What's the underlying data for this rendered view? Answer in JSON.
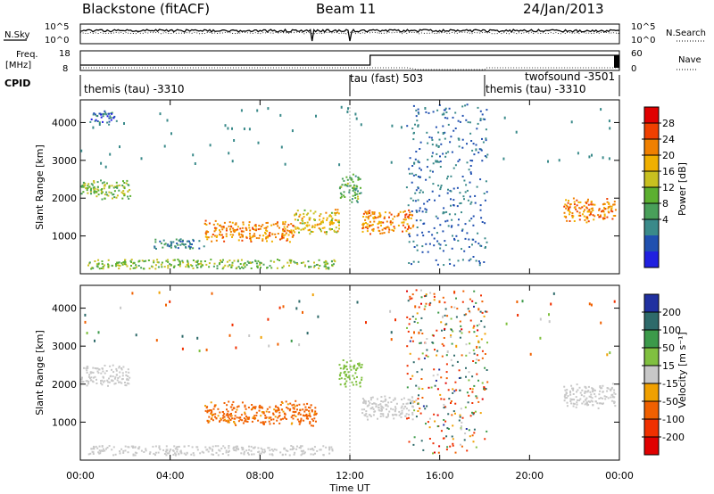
{
  "header": {
    "station": "Blackstone (fitACF)",
    "beam": "Beam 11",
    "date": "24/Jan/2013"
  },
  "panel_labels": {
    "nsky": "N.Sky",
    "nsearch": "N.Search",
    "freq": "Freq.",
    "freq_unit": "[MHz]",
    "nave": "Nave",
    "cpid": "CPID"
  },
  "noise_axis": {
    "left_top": "10^5",
    "left_bottom": "10^0",
    "right_top": "10^5",
    "right_bottom": "10^0"
  },
  "freq_axis": {
    "left_top": "18",
    "left_bottom": "8",
    "right_top": "60",
    "right_bottom": "0"
  },
  "cpid_segments": [
    {
      "label": "themis (tau) -3310",
      "start": 0,
      "end": 12
    },
    {
      "label": "tau (fast) 503",
      "start": 12,
      "end": 18
    },
    {
      "label": "twofsound -3501",
      "start": 18,
      "end": 24
    },
    {
      "label": "themis (tau) -3310",
      "start": 18,
      "end": 24
    }
  ],
  "x_axis": {
    "title": "Time UT",
    "ticks": [
      "00:00",
      "04:00",
      "08:00",
      "12:00",
      "16:00",
      "20:00",
      "00:00"
    ],
    "range": [
      0,
      24
    ]
  },
  "y_axis": {
    "title": "Slant Range [km]",
    "ticks": [
      "1000",
      "2000",
      "3000",
      "4000"
    ],
    "range": [
      0,
      4600
    ]
  },
  "power_scale": {
    "title": "Power [dB]",
    "labels": [
      "4",
      "8",
      "12",
      "16",
      "20",
      "24",
      "28"
    ],
    "colors": [
      "#2020e0",
      "#2050b0",
      "#3a8a8a",
      "#49a05a",
      "#5cb030",
      "#c8c020",
      "#f0b000",
      "#f08000",
      "#f04000",
      "#e00000"
    ]
  },
  "velocity_scale": {
    "title": "Velocity [m s⁻¹]",
    "labels": [
      "200",
      "100",
      "50",
      "15",
      "-15",
      "-50",
      "-100",
      "-200"
    ],
    "colors": [
      "#2030a0",
      "#2e6a6a",
      "#3c9a4a",
      "#80c040",
      "#c8c8c8",
      "#f0a000",
      "#f06000",
      "#f03000",
      "#e00000"
    ]
  },
  "chart_data": {
    "type": "heatmap",
    "title": "Blackstone (fitACF) Beam 11 24/Jan/2013",
    "xlabel": "Time UT",
    "ylabel": "Slant Range [km]",
    "xlim": [
      0,
      24
    ],
    "ylim": [
      0,
      4600
    ],
    "series": [
      {
        "name": "Power [dB]",
        "regions": [
          {
            "t_start": 0.0,
            "t_end": 2.2,
            "r_center": 2250,
            "r_half": 300,
            "value": 14
          },
          {
            "t_start": 0.4,
            "t_end": 1.6,
            "r_center": 4150,
            "r_half": 200,
            "value": 6
          },
          {
            "t_start": 3.2,
            "t_end": 5.5,
            "r_center": 800,
            "r_half": 150,
            "value": 8
          },
          {
            "t_start": 5.5,
            "t_end": 9.5,
            "r_center": 1150,
            "r_half": 300,
            "value": 22
          },
          {
            "t_start": 9.5,
            "t_end": 11.5,
            "r_center": 1400,
            "r_half": 350,
            "value": 18
          },
          {
            "t_start": 11.5,
            "t_end": 12.5,
            "r_center": 2300,
            "r_half": 400,
            "value": 12
          },
          {
            "t_start": 12.5,
            "t_end": 14.8,
            "r_center": 1400,
            "r_half": 350,
            "value": 22
          },
          {
            "t_start": 21.5,
            "t_end": 23.8,
            "r_center": 1700,
            "r_half": 350,
            "value": 22
          }
        ]
      },
      {
        "name": "Velocity [m s⁻¹]",
        "regions": [
          {
            "t_start": 0.0,
            "t_end": 2.2,
            "r_center": 2250,
            "r_half": 300,
            "value": 0
          },
          {
            "t_start": 5.5,
            "t_end": 10.5,
            "r_center": 1250,
            "r_half": 350,
            "value": -60
          },
          {
            "t_start": 11.5,
            "t_end": 12.5,
            "r_center": 2300,
            "r_half": 400,
            "value": 30
          },
          {
            "t_start": 12.5,
            "t_end": 14.8,
            "r_center": 1400,
            "r_half": 350,
            "value": 0
          },
          {
            "t_start": 21.5,
            "t_end": 23.8,
            "r_center": 1700,
            "r_half": 350,
            "value": 0
          }
        ]
      }
    ]
  }
}
